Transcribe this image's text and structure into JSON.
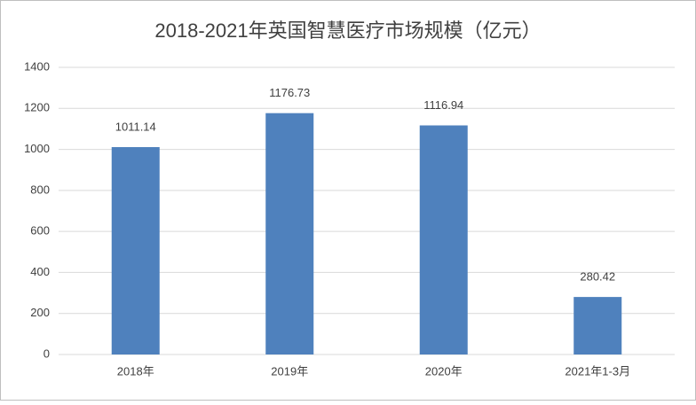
{
  "chart_data": {
    "type": "bar",
    "title": "2018-2021年英国智慧医疗市场规模（亿元）",
    "categories": [
      "2018年",
      "2019年",
      "2020年",
      "2021年1-3月"
    ],
    "values": [
      1011.14,
      1176.73,
      1116.94,
      280.42
    ],
    "color": "#4f81bd",
    "ylim": [
      0,
      1400
    ],
    "yticks": [
      0,
      200,
      400,
      600,
      800,
      1000,
      1200,
      1400
    ],
    "grid": true
  }
}
